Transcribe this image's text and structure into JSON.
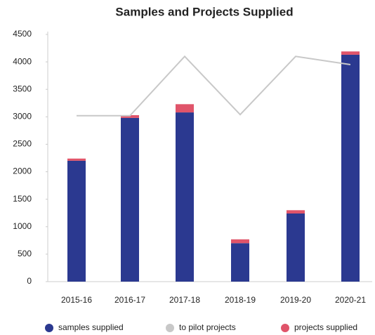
{
  "chart_data": {
    "type": "bar",
    "title": "Samples and Projects Supplied",
    "categories": [
      "2015-16",
      "2016-17",
      "2017-18",
      "2018-19",
      "2019-20",
      "2020-21"
    ],
    "series": [
      {
        "name": "samples supplied",
        "type": "bar",
        "color": "#2b3990",
        "values": [
          2200,
          2980,
          3080,
          700,
          1240,
          4130
        ]
      },
      {
        "name": "to pilot projects",
        "type": "line",
        "color": "#c8c8c8",
        "values": [
          3020,
          3020,
          4100,
          3040,
          4100,
          3950
        ]
      },
      {
        "name": "projects supplied",
        "type": "bar",
        "color": "#e0546a",
        "values": [
          40,
          50,
          150,
          70,
          60,
          60
        ]
      }
    ],
    "ylim": [
      0,
      4500
    ],
    "yticks": [
      0,
      500,
      1000,
      1500,
      2000,
      2500,
      3000,
      3500,
      4000,
      4500
    ]
  }
}
